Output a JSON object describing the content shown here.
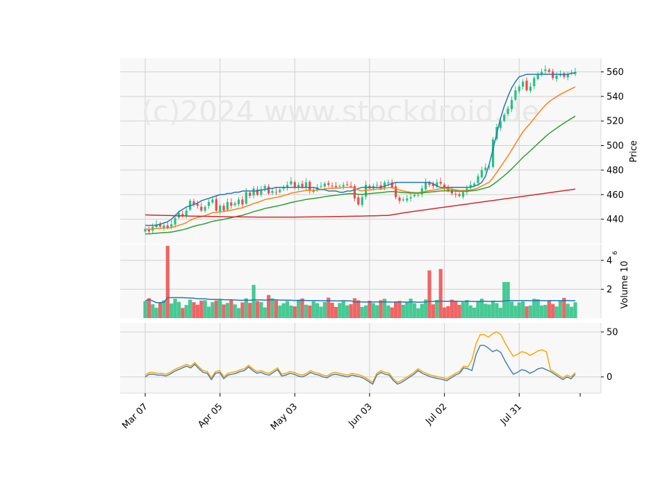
{
  "chart_data": {
    "type": "candlestick",
    "watermark": "(c)2024 www.stockdroid.de",
    "colors": {
      "background": "#ffffff",
      "panel_background": "#f8f8f8",
      "grid": "#d0d0d0",
      "up": "#26c281",
      "down": "#f04a4a",
      "ma1": "#1f77b4",
      "ma2": "#ff7f0e",
      "ma3": "#2ca02c",
      "ma4": "#d62728",
      "vol_ma": "#1f77b4",
      "osc_fast": "#4682b4",
      "osc_slow": "#ffa500",
      "watermark": "#e8e8e8"
    },
    "x_tick_labels": [
      {
        "label": "Mar 07",
        "index": 0
      },
      {
        "label": "Apr 05",
        "index": 20
      },
      {
        "label": "May 03",
        "index": 40
      },
      {
        "label": "Jun 03",
        "index": 60
      },
      {
        "label": "Jul 02",
        "index": 80
      },
      {
        "label": "Jul 31",
        "index": 100
      }
    ],
    "price_panel": {
      "ylabel": "Price",
      "yticks": [
        440,
        460,
        480,
        500,
        520,
        540,
        560
      ],
      "ylim": [
        420,
        571
      ]
    },
    "volume_panel": {
      "ylabel": "Volume  10^6",
      "yticks": [
        2,
        4
      ],
      "ylim": [
        0,
        5.1
      ]
    },
    "osc_panel": {
      "yticks": [
        0,
        50
      ],
      "ylim": [
        -18,
        60
      ]
    },
    "candles_close": [
      432,
      430,
      434,
      436,
      434,
      435,
      433,
      436,
      441,
      445,
      443,
      447,
      455,
      452,
      451,
      447,
      450,
      454,
      456,
      447,
      451,
      447,
      454,
      451,
      453,
      456,
      452,
      462,
      459,
      465,
      460,
      464,
      467,
      461,
      463,
      462,
      464,
      466,
      468,
      471,
      466,
      468,
      466,
      470,
      463,
      464,
      466,
      467,
      469,
      468,
      467,
      466,
      467,
      468,
      468,
      467,
      457,
      452,
      458,
      468,
      465,
      467,
      468,
      465,
      470,
      470,
      466,
      458,
      455,
      456,
      457,
      458,
      460,
      460,
      465,
      470,
      468,
      467,
      470,
      469,
      466,
      463,
      461,
      460,
      459,
      462,
      465,
      468,
      469,
      475,
      480,
      482,
      483,
      505,
      515,
      520,
      525,
      530,
      537,
      545,
      548,
      552,
      545,
      548,
      555,
      558,
      560,
      562,
      560,
      555,
      557,
      558,
      556,
      558,
      559,
      560
    ],
    "ma1": [
      435,
      435,
      435,
      435,
      436,
      437,
      438,
      440,
      443,
      446,
      448,
      450,
      451,
      452,
      453,
      455,
      456,
      457,
      458,
      459,
      460,
      460,
      461,
      461,
      462,
      462,
      463,
      463,
      463,
      463,
      463,
      464,
      464,
      465,
      465,
      466,
      466,
      466,
      466,
      466,
      466,
      466,
      466,
      466,
      466,
      466,
      465,
      464,
      464,
      463,
      463,
      463,
      462,
      462,
      463,
      463,
      464,
      465,
      466,
      466,
      466,
      466,
      466,
      466,
      467,
      468,
      469,
      470,
      470,
      470,
      470,
      470,
      470,
      470,
      470,
      470,
      470,
      469,
      467,
      466,
      466,
      466,
      466,
      466,
      466,
      466,
      466,
      466,
      467,
      468,
      470,
      475,
      485,
      497,
      510,
      522,
      532,
      540,
      547,
      552,
      556,
      557,
      558,
      558,
      558,
      558,
      558,
      558,
      558,
      558,
      558,
      558,
      558,
      558,
      559,
      559
    ],
    "osc_fast": [
      0,
      3,
      3,
      2,
      2,
      1,
      3,
      6,
      8,
      10,
      12,
      10,
      14,
      9,
      5,
      4,
      -3,
      4,
      5,
      -2,
      2,
      3,
      4,
      6,
      7,
      11,
      7,
      4,
      5,
      3,
      2,
      5,
      8,
      1,
      2,
      4,
      3,
      1,
      0,
      2,
      5,
      3,
      2,
      0,
      -1,
      2,
      3,
      2,
      1,
      0,
      2,
      1,
      0,
      -2,
      -5,
      -8,
      2,
      5,
      3,
      2,
      -4,
      -8,
      -6,
      -3,
      0,
      3,
      7,
      4,
      2,
      0,
      -1,
      -2,
      -3,
      -4,
      -1,
      2,
      4,
      10,
      9,
      7,
      25,
      35,
      35,
      32,
      28,
      30,
      27,
      18,
      10,
      3,
      5,
      8,
      7,
      4,
      6,
      9,
      10,
      8,
      6,
      3,
      0,
      -3,
      0,
      -2,
      3
    ]
  }
}
